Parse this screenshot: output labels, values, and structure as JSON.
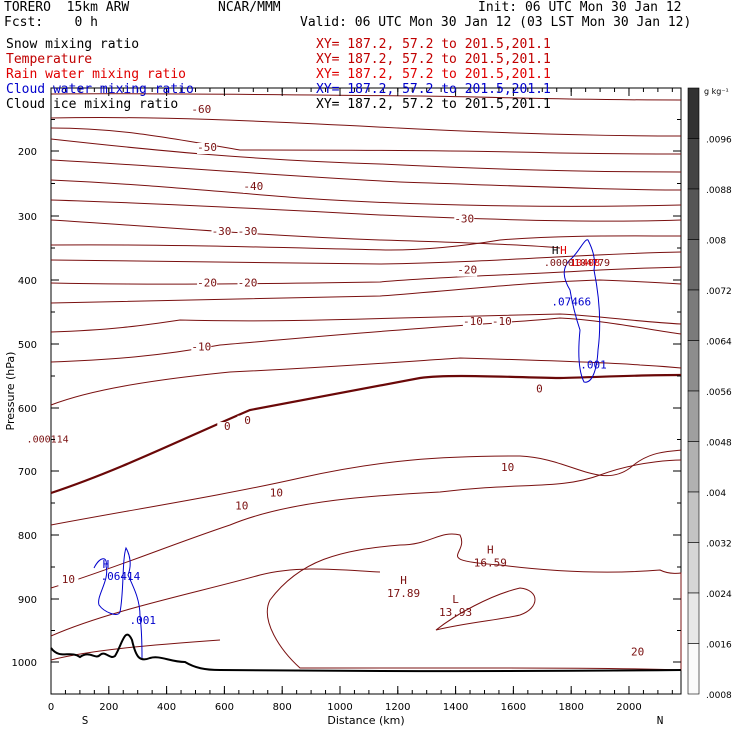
{
  "header": {
    "model": "TORERO  15km ARW",
    "center": "NCAR/MMM",
    "init": "Init: 06 UTC Mon 30 Jan 12",
    "fcst": "Fcst:    0 h",
    "valid": "Valid: 06 UTC Mon 30 Jan 12 (03 LST Mon 30 Jan 12)"
  },
  "fields": [
    {
      "name": "Snow mixing ratio",
      "xy": "XY= 187.2, 57.2 to 201.5,201.1",
      "color": "#000000"
    },
    {
      "name": "Temperature",
      "xy": "XY= 187.2, 57.2 to 201.5,201.1",
      "color": "#c00000"
    },
    {
      "name": "Rain water mixing ratio",
      "xy": "XY= 187.2, 57.2 to 201.5,201.1",
      "color": "#e00000"
    },
    {
      "name": "Cloud water mixing ratio",
      "xy": "XY= 187.2, 57.2 to 201.5,201.1",
      "color": "#0000cc"
    },
    {
      "name": "Cloud ice mixing ratio",
      "xy": "XY= 187.2, 57.2 to 201.5,201.1",
      "color": "#000000"
    }
  ],
  "chart_data": {
    "type": "cross-section contour",
    "xlabel": "Distance (km)",
    "ylabel": "Pressure (hPa)",
    "xlim": [
      0,
      2180
    ],
    "ylim": [
      1050,
      100
    ],
    "x_ticks": [
      "0",
      "200",
      "400",
      "600",
      "800",
      "1000",
      "1200",
      "1400",
      "1600",
      "1800",
      "2000"
    ],
    "y_ticks": [
      "200",
      "300",
      "400",
      "500",
      "600",
      "700",
      "800",
      "900",
      "1000"
    ],
    "end_labels": {
      "left": "S",
      "right": "N"
    },
    "colorbar": {
      "unit": "g kg⁻¹",
      "ticks": [
        ".0096",
        ".0088",
        ".008",
        ".0072",
        ".0064",
        ".0056",
        ".0048",
        ".004",
        ".0032",
        ".0024",
        ".0016",
        ".0008"
      ]
    },
    "temperature_labels": [
      {
        "x": 520,
        "p": 140,
        "text": "-60"
      },
      {
        "x": 540,
        "p": 200,
        "text": "-50"
      },
      {
        "x": 700,
        "p": 260,
        "text": "-40"
      },
      {
        "x": 590,
        "p": 330,
        "text": "-30"
      },
      {
        "x": 680,
        "p": 330,
        "text": "-30"
      },
      {
        "x": 1430,
        "p": 310,
        "text": "-30"
      },
      {
        "x": 540,
        "p": 410,
        "text": "-20"
      },
      {
        "x": 680,
        "p": 410,
        "text": "-20"
      },
      {
        "x": 1440,
        "p": 390,
        "text": "-20"
      },
      {
        "x": 520,
        "p": 510,
        "text": "-10"
      },
      {
        "x": 1460,
        "p": 470,
        "text": "-10"
      },
      {
        "x": 1560,
        "p": 470,
        "text": "-10"
      },
      {
        "x": 610,
        "p": 635,
        "text": "0"
      },
      {
        "x": 680,
        "p": 625,
        "text": "0"
      },
      {
        "x": 1690,
        "p": 576,
        "text": "0"
      },
      {
        "x": 660,
        "p": 760,
        "text": "10"
      },
      {
        "x": 780,
        "p": 740,
        "text": "10"
      },
      {
        "x": 1580,
        "p": 700,
        "text": "10"
      },
      {
        "x": 60,
        "p": 875,
        "text": "10"
      },
      {
        "x": 2030,
        "p": 990,
        "text": "20"
      }
    ],
    "extrema": [
      {
        "x": 1220,
        "p": 895,
        "kind": "H",
        "value": "17.89"
      },
      {
        "x": 1520,
        "p": 848,
        "kind": "H",
        "value": "16.59"
      },
      {
        "x": 1400,
        "p": 925,
        "kind": "L",
        "value": "13.93"
      }
    ],
    "cloud_water": [
      {
        "x": 220,
        "p": 870,
        "kind": "H",
        "value": ".06414"
      },
      {
        "x": 320,
        "p": 940,
        "kind": "",
        "value": ".001"
      },
      {
        "x": 1780,
        "p": 440,
        "kind": "",
        "value": ".07466"
      },
      {
        "x": 1880,
        "p": 538,
        "kind": "",
        "value": ".001"
      }
    ],
    "snow_labels": [
      {
        "x": 1830,
        "p": 378,
        "kind": "H",
        "value": ".0000104779"
      },
      {
        "x": 40,
        "p": 655,
        "kind": "",
        "value": ".000114"
      }
    ],
    "rain_labels": [
      {
        "x": 1900,
        "p": 378,
        "kind": "H",
        "value": "10408"
      }
    ]
  }
}
